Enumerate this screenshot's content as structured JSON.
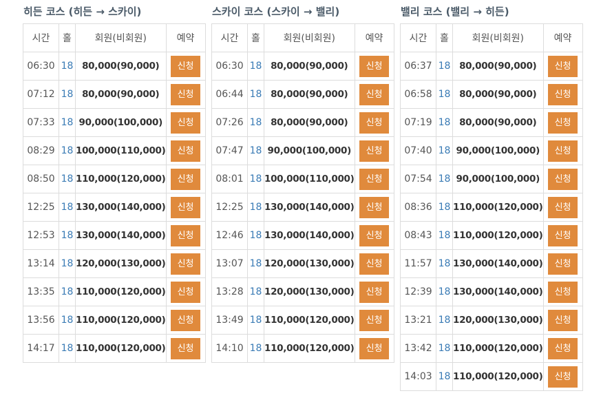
{
  "columns": {
    "time": "시간",
    "hole": "홀",
    "price": "회원(비회원)",
    "reserve": "예약"
  },
  "button_label": "신청",
  "courses": [
    {
      "title": "히든 코스 (히든 → 스카이)",
      "rows": [
        {
          "time": "06:30",
          "hole": "18",
          "price": "80,000(90,000)"
        },
        {
          "time": "07:12",
          "hole": "18",
          "price": "80,000(90,000)"
        },
        {
          "time": "07:33",
          "hole": "18",
          "price": "90,000(100,000)"
        },
        {
          "time": "08:29",
          "hole": "18",
          "price": "100,000(110,000)"
        },
        {
          "time": "08:50",
          "hole": "18",
          "price": "110,000(120,000)"
        },
        {
          "time": "12:25",
          "hole": "18",
          "price": "130,000(140,000)"
        },
        {
          "time": "12:53",
          "hole": "18",
          "price": "130,000(140,000)"
        },
        {
          "time": "13:14",
          "hole": "18",
          "price": "120,000(130,000)"
        },
        {
          "time": "13:35",
          "hole": "18",
          "price": "110,000(120,000)"
        },
        {
          "time": "13:56",
          "hole": "18",
          "price": "110,000(120,000)"
        },
        {
          "time": "14:17",
          "hole": "18",
          "price": "110,000(120,000)"
        }
      ]
    },
    {
      "title": "스카이 코스 (스카이 → 밸리)",
      "rows": [
        {
          "time": "06:30",
          "hole": "18",
          "price": "80,000(90,000)"
        },
        {
          "time": "06:44",
          "hole": "18",
          "price": "80,000(90,000)"
        },
        {
          "time": "07:26",
          "hole": "18",
          "price": "80,000(90,000)"
        },
        {
          "time": "07:47",
          "hole": "18",
          "price": "90,000(100,000)"
        },
        {
          "time": "08:01",
          "hole": "18",
          "price": "100,000(110,000)"
        },
        {
          "time": "12:25",
          "hole": "18",
          "price": "130,000(140,000)"
        },
        {
          "time": "12:46",
          "hole": "18",
          "price": "130,000(140,000)"
        },
        {
          "time": "13:07",
          "hole": "18",
          "price": "120,000(130,000)"
        },
        {
          "time": "13:28",
          "hole": "18",
          "price": "120,000(130,000)"
        },
        {
          "time": "13:49",
          "hole": "18",
          "price": "110,000(120,000)"
        },
        {
          "time": "14:10",
          "hole": "18",
          "price": "110,000(120,000)"
        }
      ]
    },
    {
      "title": "밸리 코스 (밸리 → 히든)",
      "rows": [
        {
          "time": "06:37",
          "hole": "18",
          "price": "80,000(90,000)"
        },
        {
          "time": "06:58",
          "hole": "18",
          "price": "80,000(90,000)"
        },
        {
          "time": "07:19",
          "hole": "18",
          "price": "80,000(90,000)"
        },
        {
          "time": "07:40",
          "hole": "18",
          "price": "90,000(100,000)"
        },
        {
          "time": "07:54",
          "hole": "18",
          "price": "90,000(100,000)"
        },
        {
          "time": "08:36",
          "hole": "18",
          "price": "110,000(120,000)"
        },
        {
          "time": "08:43",
          "hole": "18",
          "price": "110,000(120,000)"
        },
        {
          "time": "11:57",
          "hole": "18",
          "price": "130,000(140,000)"
        },
        {
          "time": "12:39",
          "hole": "18",
          "price": "130,000(140,000)"
        },
        {
          "time": "13:21",
          "hole": "18",
          "price": "120,000(130,000)"
        },
        {
          "time": "13:42",
          "hole": "18",
          "price": "110,000(120,000)"
        },
        {
          "time": "14:03",
          "hole": "18",
          "price": "110,000(120,000)"
        }
      ]
    }
  ]
}
